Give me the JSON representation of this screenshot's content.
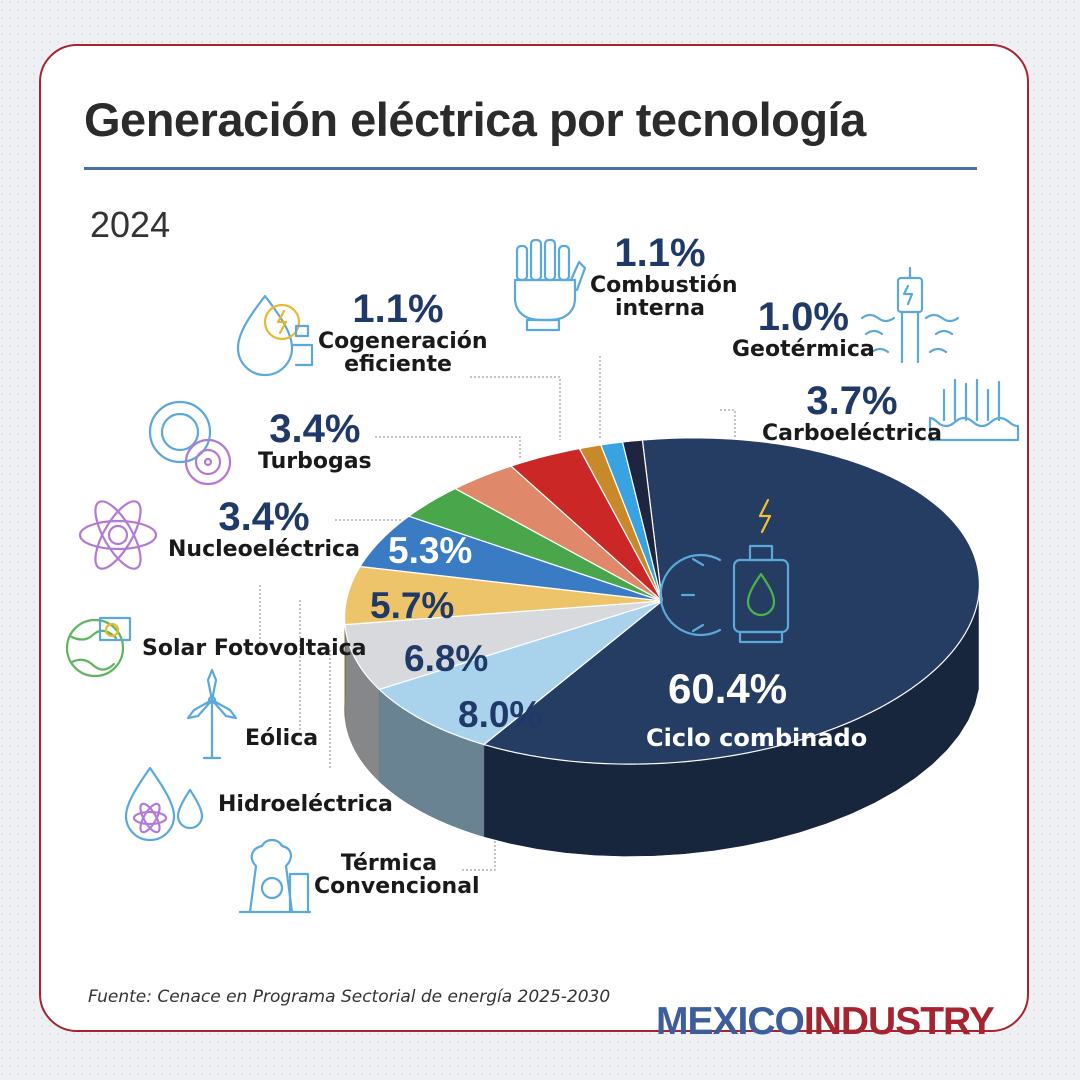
{
  "title": "Generación eléctrica por tecnología",
  "year": "2024",
  "source": "Fuente: Cenace en Programa Sectorial de energía 2025-2030",
  "brand": {
    "part1": "MEXICO",
    "part2": "INDUSTRY"
  },
  "colors": {
    "frame": "#a5242f",
    "rule": "#4d6fa8",
    "brand_blue": "#3d5e9c",
    "brand_red": "#a5242f"
  },
  "chart_data": {
    "type": "pie",
    "title": "Generación eléctrica por tecnología",
    "subtitle": "2024",
    "style": "3d-pie",
    "slices": [
      {
        "label": "Ciclo combinado",
        "value": 60.4,
        "pct_text": "60.4%",
        "color": "#253c63",
        "icon": "gear-flame-icon"
      },
      {
        "label": "Térmica Convencional",
        "value": 8.0,
        "pct_text": "8.0%",
        "color": "#a9d3ec",
        "icon": "power-plant-icon"
      },
      {
        "label": "Hidroeléctrica",
        "value": 6.8,
        "pct_text": "6.8%",
        "color": "#d7d9dd",
        "icon": "water-drop-atom-icon"
      },
      {
        "label": "Eólica",
        "value": 5.7,
        "pct_text": "5.7%",
        "color": "#eec46a",
        "icon": "wind-turbine-icon"
      },
      {
        "label": "Solar Fotovoltaica",
        "value": 5.3,
        "pct_text": "5.3%",
        "color": "#3a7cc4",
        "icon": "solar-globe-icon"
      },
      {
        "label": "Nucleoeléctrica",
        "value": 3.4,
        "pct_text": "3.4%",
        "color": "#4aa64a",
        "icon": "atom-icon"
      },
      {
        "label": "Turbogas",
        "value": 3.4,
        "pct_text": "3.4%",
        "color": "#e0896a",
        "icon": "turbine-gear-icon"
      },
      {
        "label": "Carboeléctrica",
        "value": 3.7,
        "pct_text": "3.7%",
        "color": "#cc2727",
        "icon": "coal-plant-icon"
      },
      {
        "label": "Cogeneración eficiente",
        "value": 1.1,
        "pct_text": "1.1%",
        "color": "#c8892b",
        "icon": "water-energy-icon"
      },
      {
        "label": "Combustión interna",
        "value": 1.1,
        "pct_text": "1.1%",
        "color": "#38a3e0",
        "icon": "robot-hand-icon"
      },
      {
        "label": "Geotérmica",
        "value": 1.0,
        "pct_text": "1.0%",
        "color": "#1e2540",
        "icon": "geothermal-well-icon"
      }
    ]
  }
}
